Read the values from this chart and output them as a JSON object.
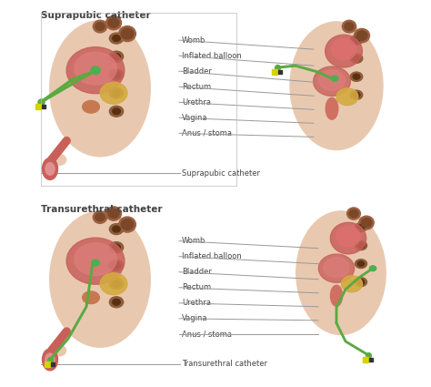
{
  "title_top": "Suprapubic catheter",
  "title_bottom": "Transurethral catheter",
  "bg_color": "#ffffff",
  "figure_width": 4.74,
  "figure_height": 4.25,
  "dpi": 100,
  "skin_color": "#e8c9b0",
  "body_color": "#dba882",
  "organ_pink": "#c8605a",
  "organ_dark": "#7a3020",
  "organ_yellow": "#d4aa40",
  "organ_brown": "#8b5e3c",
  "green_tube": "#5aaa40",
  "green_ball": "#4caf50",
  "yellow_conn": "#d4d400",
  "label_color": "#444444",
  "line_color": "#999999",
  "title_fontsize": 7.5,
  "label_fontsize": 6.0,
  "top_labels": [
    "Womb",
    "Inflated balloon",
    "Bladder",
    "Rectum",
    "Urethra",
    "Vagina",
    "Anus / stoma"
  ],
  "top_catheter_label": "Suprapubic catheter",
  "bottom_labels": [
    "Womb",
    "Inflated balloon",
    "Bladder",
    "Rectum",
    "Urethra",
    "Vagina",
    "Anus / stoma"
  ],
  "bottom_catheter_label": "Transurethral catheter"
}
